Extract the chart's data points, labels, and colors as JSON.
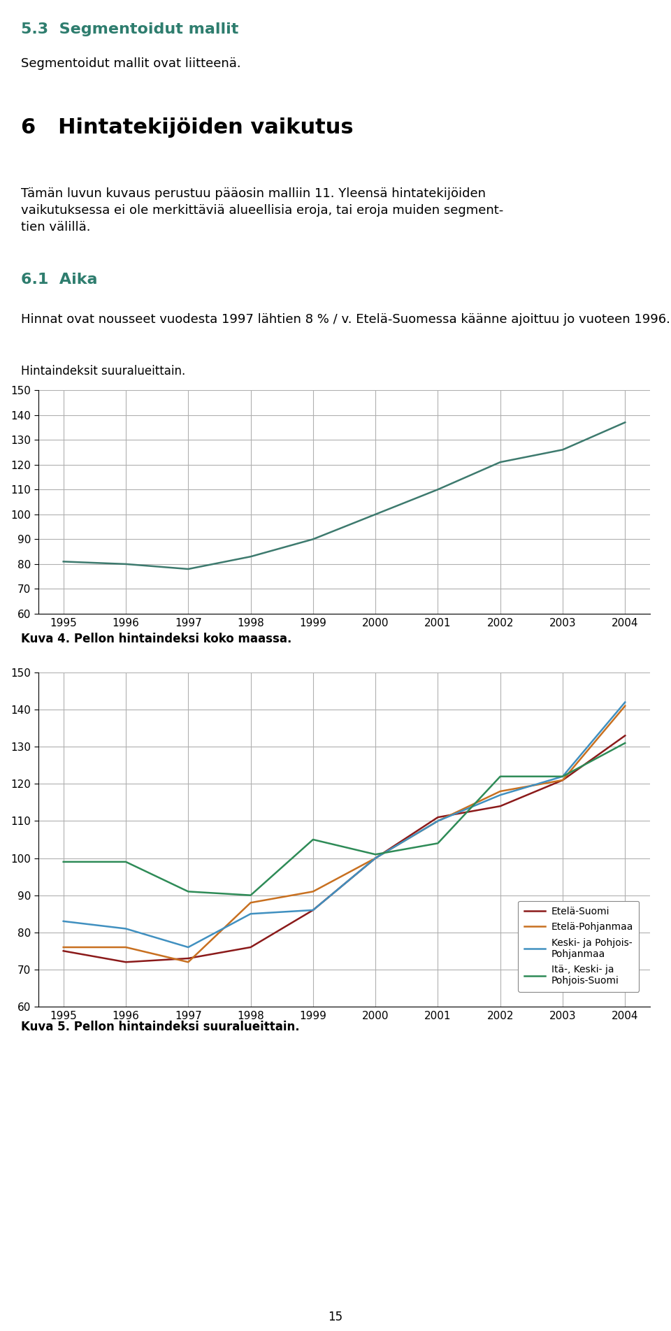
{
  "years": [
    1995,
    1996,
    1997,
    1998,
    1999,
    2000,
    2001,
    2002,
    2003,
    2004
  ],
  "chart1_data": [
    81,
    80,
    78,
    83,
    90,
    100,
    110,
    121,
    126,
    137
  ],
  "chart1_color": "#3d7a6e",
  "chart2_series_keys": [
    "Etelä-Suomi",
    "Etelä-Pohjanmaa",
    "Keski- ja Pohjois-Pohjanmaa",
    "Itä-, Keski- ja Pohjois-Suomi"
  ],
  "chart2_series": {
    "Etelä-Suomi": [
      75,
      72,
      73,
      76,
      86,
      100,
      111,
      114,
      121,
      133
    ],
    "Etelä-Pohjanmaa": [
      76,
      76,
      72,
      88,
      91,
      100,
      110,
      118,
      121,
      141
    ],
    "Keski- ja Pohjois-Pohjanmaa": [
      83,
      81,
      76,
      85,
      86,
      100,
      110,
      117,
      122,
      142
    ],
    "Itä-, Keski- ja Pohjois-Suomi": [
      99,
      99,
      91,
      90,
      105,
      101,
      104,
      122,
      122,
      131
    ]
  },
  "chart2_colors": {
    "Etelä-Suomi": "#8B1A1A",
    "Etelä-Pohjanmaa": "#C87020",
    "Keski- ja Pohjois-Pohjanmaa": "#4090C0",
    "Itä-, Keski- ja Pohjois-Suomi": "#2E8B57"
  },
  "chart2_legend_display": {
    "Etelä-Suomi": "Etelä-Suomi",
    "Etelä-Pohjanmaa": "Etelä-Pohjanmaa",
    "Keski- ja Pohjois-Pohjanmaa": "Keski- ja Pohjois-\nPohjanmaa",
    "Itä-, Keski- ja Pohjois-Suomi": "Itä-, Keski- ja\nPohjois-Suomi"
  },
  "ylim": [
    60,
    150
  ],
  "yticks": [
    60,
    70,
    80,
    90,
    100,
    110,
    120,
    130,
    140,
    150
  ],
  "heading1_text": "5.3  Segmentoidut mallit",
  "heading1_color": "#2e7d6e",
  "heading1_size": 16,
  "para1_text": "Segmentoidut mallit ovat liitteenä.",
  "heading2_text": "6   Hintatekijöiden vaikutus",
  "heading2_color": "#000000",
  "heading2_size": 22,
  "para2_line1": "Tämän luvun kuvaus perustuu pääosin malliin 11. Yleensä hintatekijöiden",
  "para2_line2": "vaikutuksessa ei ole merkittäviä alueellisia eroja, tai eroja muiden segment-",
  "para2_line3": "tien välillä.",
  "heading3_text": "6.1  Aika",
  "heading3_color": "#2e7d6e",
  "heading3_size": 16,
  "para3_line1": "Hinnat ovat nousseet vuodesta 1997 lähtien 8 % / v. Etelä-Suomessa käänne ajoittuu jo vuoteen 1996.",
  "chart1_label": "Hintaindeksit suuralueittain.",
  "caption1_text": "Kuva 4. Pellon hintaindeksi koko maassa.",
  "caption2_text": "Kuva 5. Pellon hintaindeksi suuralueittain.",
  "page_number": "15",
  "bg_color": "#ffffff",
  "text_color": "#000000",
  "grid_color": "#b0b0b0",
  "spine_color": "#000000"
}
